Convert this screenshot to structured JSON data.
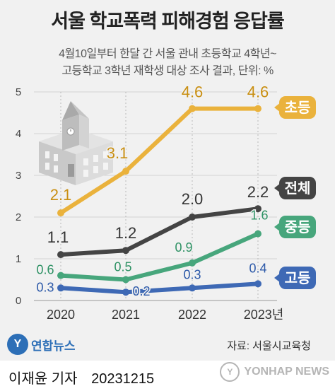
{
  "title": "서울 학교폭력 피해경험 응답률",
  "subtitle_line1": "4월10일부터 한달 간 서울 관내 초등학교 4학년~",
  "subtitle_line2": "고등학교 3학년 재학생 대상 조사 결과, 단위: %",
  "source": "자료: 서울시교육청",
  "logo_text": "연합뉴스",
  "byline": "이재윤 기자",
  "date": "20231215",
  "watermark": "YONHAP NEWS",
  "colors": {
    "elementary": "#eab23c",
    "overall": "#444444",
    "middle": "#47a67c",
    "high": "#3e69b5",
    "background": "#f1f1f1"
  },
  "chart_data": {
    "type": "line",
    "categories": [
      "2020",
      "2021",
      "2022",
      "2023년"
    ],
    "ylim": [
      0,
      5
    ],
    "yticks": [
      "0",
      "1",
      "2",
      "3",
      "4",
      "5"
    ],
    "grid": true,
    "series": [
      {
        "name": "초등",
        "values": [
          2.1,
          3.1,
          4.6,
          4.6
        ],
        "labels": [
          "2.1",
          "3.1",
          "4.6",
          "4.6"
        ],
        "color": "#eab23c",
        "label_color": "#c98f12"
      },
      {
        "name": "전체",
        "values": [
          1.1,
          1.2,
          2.0,
          2.2
        ],
        "labels": [
          "1.1",
          "1.2",
          "2.0",
          "2.2"
        ],
        "color": "#444444",
        "label_color": "#333333"
      },
      {
        "name": "중등",
        "values": [
          0.6,
          0.5,
          0.9,
          1.6
        ],
        "labels": [
          "0.6",
          "0.5",
          "0.9",
          "1.6"
        ],
        "color": "#47a67c",
        "label_color": "#2f9265"
      },
      {
        "name": "고등",
        "values": [
          0.3,
          0.2,
          0.3,
          0.4
        ],
        "labels": [
          "0.3",
          "0.2",
          "0.3",
          "0.4"
        ],
        "color": "#3e69b5",
        "label_color": "#2b58a8"
      }
    ]
  }
}
